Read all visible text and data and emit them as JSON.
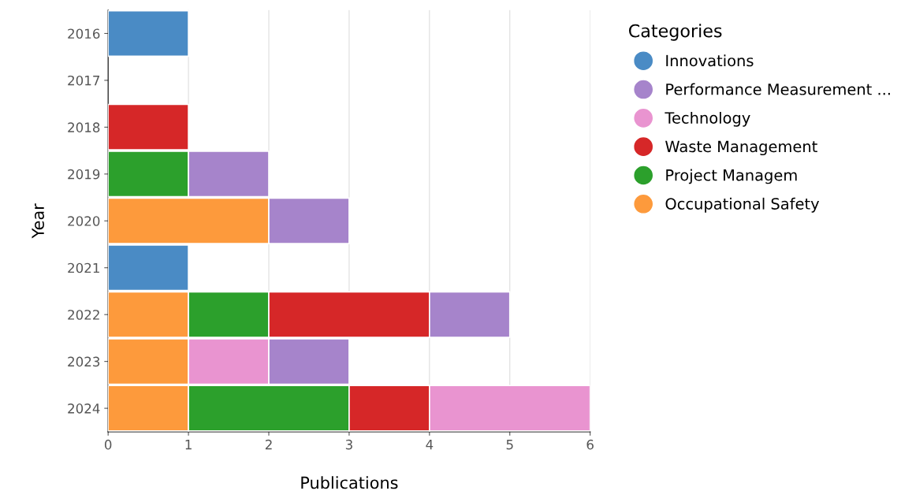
{
  "chart_data": {
    "type": "bar",
    "orientation": "horizontal",
    "stacked": true,
    "xlabel": "Publications",
    "ylabel": "Year",
    "legend_title": "Categories",
    "legend": "top right",
    "grid": "x",
    "categories": [
      "2016",
      "2017",
      "2018",
      "2019",
      "2020",
      "2021",
      "2022",
      "2023",
      "2024"
    ],
    "xlim": [
      0,
      6
    ],
    "xticks": [
      0,
      1,
      2,
      3,
      4,
      5,
      6
    ],
    "series": [
      {
        "name": "Occupational Safety",
        "color": "#fd9a3c",
        "values": [
          null,
          null,
          null,
          null,
          2,
          null,
          1,
          1,
          1
        ]
      },
      {
        "name": "Project Managem",
        "color": "#2ca02c",
        "values": [
          null,
          null,
          null,
          1,
          null,
          null,
          1,
          null,
          2
        ]
      },
      {
        "name": "Waste Management",
        "color": "#d62728",
        "values": [
          null,
          null,
          1,
          null,
          null,
          null,
          2,
          null,
          1
        ]
      },
      {
        "name": "Technology",
        "color": "#e994d0",
        "values": [
          null,
          null,
          null,
          null,
          null,
          null,
          null,
          1,
          2
        ]
      },
      {
        "name": "Performance Measurement ...",
        "color": "#a684cb",
        "values": [
          null,
          null,
          null,
          1,
          1,
          null,
          1,
          1,
          null
        ]
      },
      {
        "name": "Innovations",
        "color": "#4a8bc5",
        "values": [
          1,
          null,
          null,
          null,
          null,
          1,
          null,
          null,
          null
        ]
      }
    ]
  }
}
